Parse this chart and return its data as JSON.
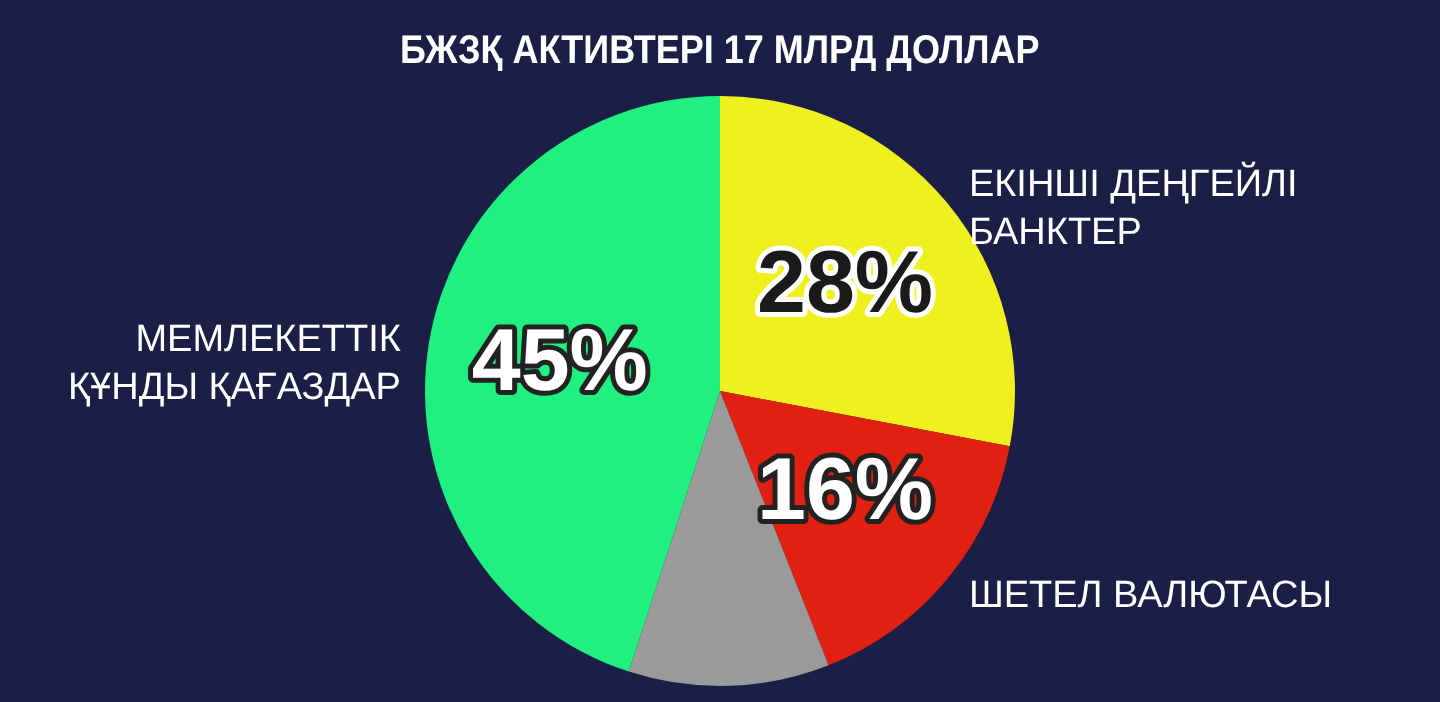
{
  "chart_data": {
    "type": "pie",
    "title": "БЖЗҚ АКТИВТЕРІ 17 МЛРД ДОЛЛАР",
    "categories": [
      "ЕКІНШІ ДЕҢГЕЙЛІ БАНКТЕР",
      "ШЕТЕЛ ВАЛЮТАСЫ",
      null,
      "МЕМЛЕКЕТТІК ҚҰНДЫ ҚАҒАЗДАР"
    ],
    "values": [
      28,
      16,
      11,
      45
    ],
    "colors": [
      "#f0f020",
      "#e02010",
      "#9a9a9a",
      "#20f080"
    ],
    "value_labels": [
      "28%",
      "16%",
      null,
      "45%"
    ],
    "legend": false
  }
}
